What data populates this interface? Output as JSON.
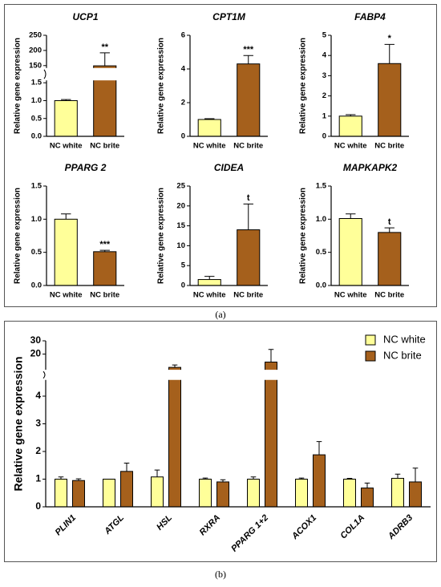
{
  "chart_data": [
    {
      "type": "bar",
      "title": "UCP1",
      "y_label": "Relative gene expression",
      "categories": [
        "NC white",
        "NC brite"
      ],
      "values": [
        1.0,
        148
      ],
      "errors": [
        0.03,
        44
      ],
      "colors": [
        "#ffff99",
        "#a5601c"
      ],
      "annotation": "**",
      "ylim": [
        0,
        250
      ],
      "ybreak": [
        1.5,
        150
      ],
      "yticks": [
        {
          "value": 0,
          "label": "0.0"
        },
        {
          "value": 0.5,
          "label": "0.5"
        },
        {
          "value": 1,
          "label": "1.0"
        },
        {
          "value": 1.5,
          "label": "1.5"
        },
        150,
        200,
        250
      ]
    },
    {
      "type": "bar",
      "title": "CPT1M",
      "y_label": "Relative gene expression",
      "categories": [
        "NC white",
        "NC brite"
      ],
      "values": [
        1.0,
        4.3
      ],
      "errors": [
        0.05,
        0.5
      ],
      "colors": [
        "#ffff99",
        "#a5601c"
      ],
      "annotation": "***",
      "ylim": [
        0,
        6
      ],
      "yticks": [
        0,
        2,
        4,
        6
      ]
    },
    {
      "type": "bar",
      "title": "FABP4",
      "y_label": "Relative gene expression",
      "categories": [
        "NC white",
        "NC brite"
      ],
      "values": [
        1.0,
        3.6
      ],
      "errors": [
        0.07,
        0.95
      ],
      "colors": [
        "#ffff99",
        "#a5601c"
      ],
      "annotation": "*",
      "ylim": [
        0,
        5
      ],
      "yticks": [
        0,
        1,
        2,
        3,
        4,
        5
      ]
    },
    {
      "type": "bar",
      "title": "PPARG 2",
      "y_label": "Relative gene expression",
      "categories": [
        "NC white",
        "NC brite"
      ],
      "values": [
        1.0,
        0.51
      ],
      "errors": [
        0.08,
        0.02
      ],
      "colors": [
        "#ffff99",
        "#a5601c"
      ],
      "annotation": "***",
      "ylim": [
        0,
        1.5
      ],
      "yticks": [
        {
          "value": 0,
          "label": "0.0"
        },
        {
          "value": 0.5,
          "label": "0.5"
        },
        {
          "value": 1,
          "label": "1.0"
        },
        {
          "value": 1.5,
          "label": "1.5"
        }
      ]
    },
    {
      "type": "bar",
      "title": "CIDEA",
      "y_label": "Relative gene expression",
      "categories": [
        "NC white",
        "NC brite"
      ],
      "values": [
        1.5,
        14
      ],
      "errors": [
        0.8,
        6.5
      ],
      "colors": [
        "#ffff99",
        "#a5601c"
      ],
      "annotation": "t",
      "ylim": [
        0,
        25
      ],
      "yticks": [
        0,
        5,
        10,
        15,
        20,
        25
      ]
    },
    {
      "type": "bar",
      "title": "MAPKAPK2",
      "y_label": "Relative gene expression",
      "categories": [
        "NC white",
        "NC brite"
      ],
      "values": [
        1.01,
        0.8
      ],
      "errors": [
        0.07,
        0.07
      ],
      "colors": [
        "#ffff99",
        "#a5601c"
      ],
      "annotation": "t",
      "ylim": [
        0,
        1.5
      ],
      "yticks": [
        {
          "value": 0,
          "label": "0.0"
        },
        {
          "value": 0.5,
          "label": "0.5"
        },
        {
          "value": 1,
          "label": "1.0"
        },
        {
          "value": 1.5,
          "label": "1.5"
        }
      ]
    },
    {
      "type": "grouped_bar",
      "y_label": "Relative gene expression",
      "categories": [
        "PLIN1",
        "ATGL",
        "HSL",
        "RXRA",
        "PPARG 1+2",
        "ACOX1",
        "COL1A",
        "ADRB3"
      ],
      "series": [
        {
          "name": "NC white",
          "color": "#ffff99",
          "values": [
            1.0,
            1.0,
            1.08,
            1.0,
            1.0,
            1.0,
            1.0,
            1.03
          ],
          "errors": [
            0.08,
            0,
            0.25,
            0.04,
            0.08,
            0.04,
            0.03,
            0.15
          ]
        },
        {
          "name": "NC brite",
          "color": "#a5601c",
          "values": [
            0.95,
            1.28,
            10,
            0.9,
            14,
            1.88,
            0.68,
            0.9
          ],
          "errors": [
            0.06,
            0.3,
            1.8,
            0.08,
            9.5,
            0.48,
            0.18,
            0.5
          ]
        }
      ],
      "ylim": [
        0,
        30
      ],
      "ybreak": [
        4.5,
        10
      ],
      "yticks": [
        0,
        1,
        2,
        3,
        4,
        20,
        30
      ],
      "legend": "upper right"
    }
  ],
  "captions": [
    "(a)",
    "(b)"
  ]
}
